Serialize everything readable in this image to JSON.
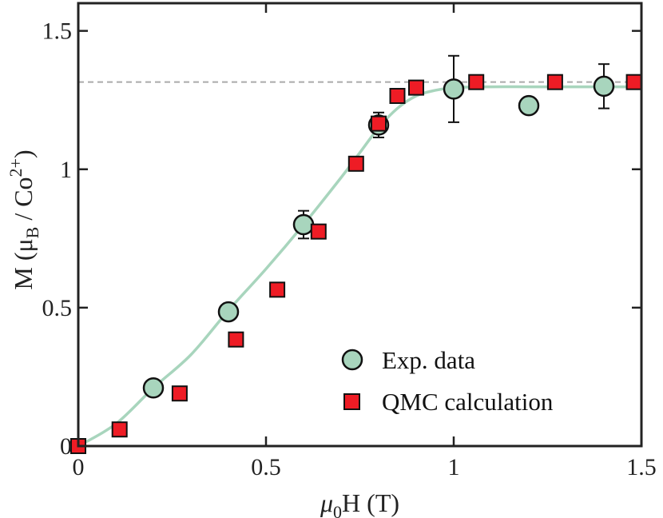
{
  "chart_data": {
    "type": "scatter",
    "xlabel": {
      "base": "μ",
      "sub": "0",
      "rest": "H (T)"
    },
    "ylabel": {
      "pre": "M (μ",
      "sub": "B",
      "mid": " / Co",
      "sup": "2+",
      "post": ")"
    },
    "xlim": [
      0,
      1.5
    ],
    "ylim": [
      0,
      1.6
    ],
    "xticks": [
      0,
      0.5,
      1,
      1.5
    ],
    "xtick_labels": [
      "0",
      "0.5",
      "1",
      "1.5"
    ],
    "yticks": [
      0,
      0.5,
      1,
      1.5
    ],
    "ytick_labels": [
      "0",
      "0.5",
      "1",
      "1.5"
    ],
    "grid": false,
    "legend_position": "bottom-right",
    "reference_line": {
      "y": 1.315,
      "style": "dashed",
      "color": "#aaaaaa"
    },
    "series": [
      {
        "name": "Exp. data",
        "marker": "circle",
        "color": "#a8d5bd",
        "points": [
          {
            "x": 0.2,
            "y": 0.21,
            "err": 0.02
          },
          {
            "x": 0.4,
            "y": 0.485,
            "err": 0.03
          },
          {
            "x": 0.6,
            "y": 0.8,
            "err": 0.05
          },
          {
            "x": 0.8,
            "y": 1.16,
            "err": 0.045
          },
          {
            "x": 1.0,
            "y": 1.29,
            "err": 0.12
          },
          {
            "x": 1.2,
            "y": 1.23,
            "err": 0.03
          },
          {
            "x": 1.4,
            "y": 1.3,
            "err": 0.08
          }
        ]
      },
      {
        "name": "QMC calculation",
        "marker": "square",
        "color": "#ee1c25",
        "points": [
          {
            "x": 0.0,
            "y": 0.0
          },
          {
            "x": 0.11,
            "y": 0.06
          },
          {
            "x": 0.27,
            "y": 0.19
          },
          {
            "x": 0.42,
            "y": 0.385
          },
          {
            "x": 0.53,
            "y": 0.565
          },
          {
            "x": 0.64,
            "y": 0.775
          },
          {
            "x": 0.74,
            "y": 1.02
          },
          {
            "x": 0.8,
            "y": 1.165
          },
          {
            "x": 0.85,
            "y": 1.265
          },
          {
            "x": 0.9,
            "y": 1.295
          },
          {
            "x": 1.06,
            "y": 1.315
          },
          {
            "x": 1.27,
            "y": 1.315
          },
          {
            "x": 1.48,
            "y": 1.315
          }
        ]
      },
      {
        "name": "fit curve",
        "marker": "line",
        "color": "#a8d5bd",
        "points": [
          {
            "x": 0.0,
            "y": 0.0
          },
          {
            "x": 0.1,
            "y": 0.08
          },
          {
            "x": 0.2,
            "y": 0.21
          },
          {
            "x": 0.3,
            "y": 0.33
          },
          {
            "x": 0.4,
            "y": 0.49
          },
          {
            "x": 0.5,
            "y": 0.64
          },
          {
            "x": 0.6,
            "y": 0.8
          },
          {
            "x": 0.7,
            "y": 0.97
          },
          {
            "x": 0.75,
            "y": 1.06
          },
          {
            "x": 0.8,
            "y": 1.15
          },
          {
            "x": 0.85,
            "y": 1.22
          },
          {
            "x": 0.9,
            "y": 1.265
          },
          {
            "x": 0.95,
            "y": 1.285
          },
          {
            "x": 1.0,
            "y": 1.295
          },
          {
            "x": 1.1,
            "y": 1.298
          },
          {
            "x": 1.2,
            "y": 1.298
          },
          {
            "x": 1.3,
            "y": 1.298
          },
          {
            "x": 1.5,
            "y": 1.298
          }
        ]
      }
    ]
  }
}
